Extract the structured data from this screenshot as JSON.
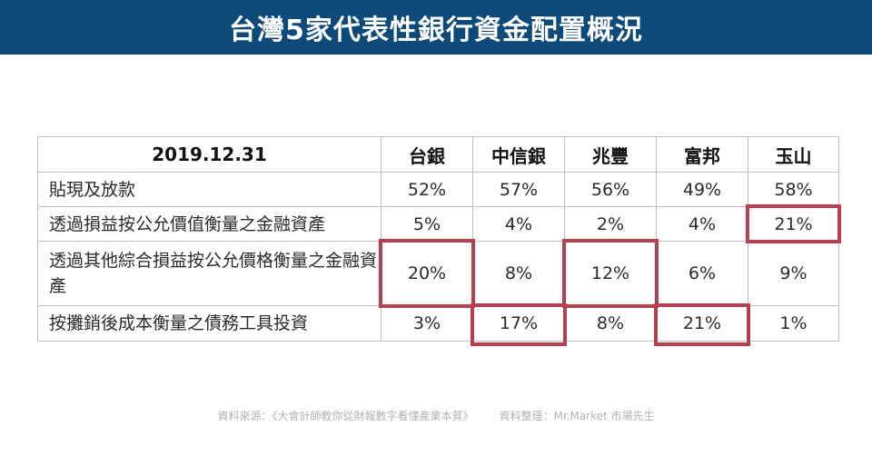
{
  "title": "台灣5家代表性銀行資金配置概況",
  "table": {
    "date_header": "2019.12.31",
    "banks": [
      "台銀",
      "中信銀",
      "兆豐",
      "富邦",
      "玉山"
    ],
    "rows": [
      {
        "label": "貼現及放款",
        "values": [
          "52%",
          "57%",
          "56%",
          "49%",
          "58%"
        ]
      },
      {
        "label": "透過損益按公允價值衡量之金融資產",
        "values": [
          "5%",
          "4%",
          "2%",
          "4%",
          "21%"
        ]
      },
      {
        "label": "透過其他綜合損益按公允價格衡量之金融資產",
        "values": [
          "20%",
          "8%",
          "12%",
          "6%",
          "9%"
        ]
      },
      {
        "label": "按攤銷後成本衡量之債務工具投資",
        "values": [
          "3%",
          "17%",
          "8%",
          "21%",
          "1%"
        ]
      }
    ]
  },
  "highlight_color": "#b6404f",
  "footer": {
    "source": "資料來源：《大會計師教你從財報數字看懂產業本質》",
    "compiled": "資料整理：Mr.Market  市場先生"
  }
}
